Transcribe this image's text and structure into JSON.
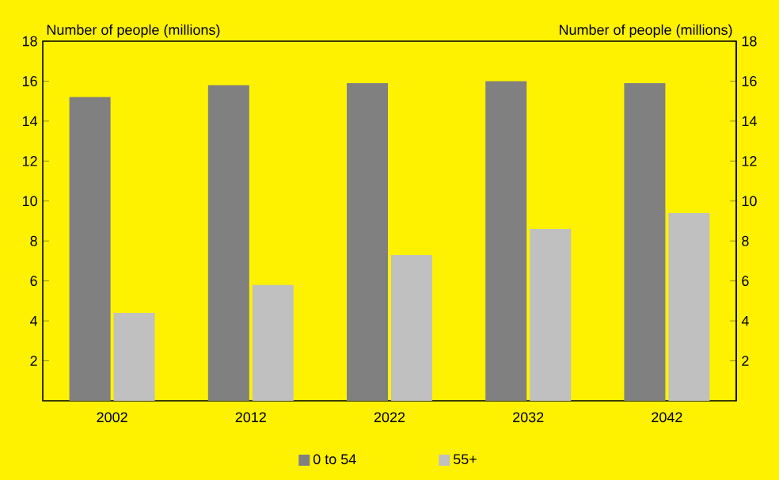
{
  "chart_data": {
    "type": "bar",
    "categories": [
      "2002",
      "2012",
      "2022",
      "2032",
      "2042"
    ],
    "series": [
      {
        "name": "0 to 54",
        "color": "#808080",
        "values": [
          15.2,
          15.8,
          15.9,
          16.0,
          15.9
        ]
      },
      {
        "name": "55+",
        "color": "#c0c0c0",
        "values": [
          4.4,
          5.8,
          7.3,
          8.6,
          9.4
        ]
      }
    ],
    "ylabel": "Number of people (millions)",
    "y2label": "Number of people (millions)",
    "ylim": [
      0,
      18
    ],
    "yticks": [
      2,
      4,
      6,
      8,
      10,
      12,
      14,
      16,
      18
    ],
    "y2lim": [
      0,
      18
    ],
    "y2ticks": [
      2,
      4,
      6,
      8,
      10,
      12,
      14,
      16,
      18
    ],
    "grid": false,
    "legend": "bottom"
  }
}
